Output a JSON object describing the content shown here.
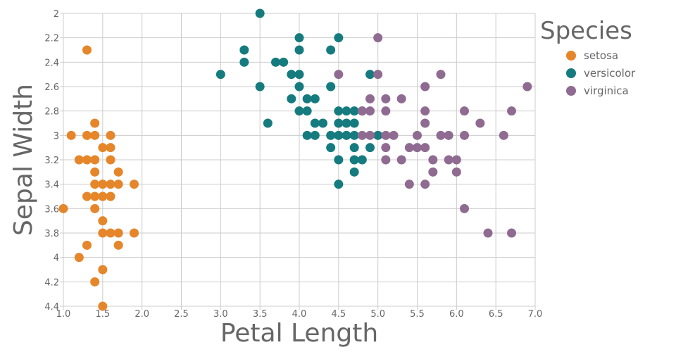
{
  "chart_data": {
    "type": "scatter",
    "xlabel": "Petal Length",
    "ylabel": "Sepal Width",
    "xlim": [
      1.0,
      7.0
    ],
    "ylim": [
      2.0,
      4.4
    ],
    "y_inverted": true,
    "x_ticks": [
      "1.0",
      "1.5",
      "2.0",
      "2.5",
      "3.0",
      "3.5",
      "4.0",
      "4.5",
      "5.0",
      "5.5",
      "6.0",
      "6.5",
      "7.0"
    ],
    "y_ticks": [
      "2",
      "2.2",
      "2.4",
      "2.6",
      "2.8",
      "3",
      "3.2",
      "3.4",
      "3.6",
      "3.8",
      "4",
      "4.2",
      "4.4"
    ],
    "grid": true,
    "legend": {
      "title": "Species",
      "position": "top-right"
    },
    "series": [
      {
        "name": "setosa",
        "color": "#e6862a",
        "points": [
          [
            1.3,
            2.3
          ],
          [
            1.1,
            3.0
          ],
          [
            1.3,
            3.0
          ],
          [
            1.4,
            3.0
          ],
          [
            1.6,
            3.0
          ],
          [
            1.4,
            2.9
          ],
          [
            1.5,
            3.1
          ],
          [
            1.6,
            3.1
          ],
          [
            1.2,
            3.2
          ],
          [
            1.3,
            3.2
          ],
          [
            1.4,
            3.2
          ],
          [
            1.6,
            3.2
          ],
          [
            1.4,
            3.3
          ],
          [
            1.7,
            3.3
          ],
          [
            1.4,
            3.4
          ],
          [
            1.5,
            3.4
          ],
          [
            1.6,
            3.4
          ],
          [
            1.7,
            3.4
          ],
          [
            1.9,
            3.4
          ],
          [
            1.3,
            3.5
          ],
          [
            1.4,
            3.5
          ],
          [
            1.5,
            3.5
          ],
          [
            1.6,
            3.5
          ],
          [
            1.0,
            3.6
          ],
          [
            1.4,
            3.6
          ],
          [
            1.5,
            3.7
          ],
          [
            1.5,
            3.8
          ],
          [
            1.6,
            3.8
          ],
          [
            1.7,
            3.8
          ],
          [
            1.9,
            3.8
          ],
          [
            1.3,
            3.9
          ],
          [
            1.7,
            3.9
          ],
          [
            1.2,
            4.0
          ],
          [
            1.5,
            4.1
          ],
          [
            1.4,
            4.2
          ],
          [
            1.5,
            4.4
          ]
        ]
      },
      {
        "name": "versicolor",
        "color": "#167b7e",
        "points": [
          [
            3.5,
            2.0
          ],
          [
            4.0,
            2.2
          ],
          [
            4.5,
            2.2
          ],
          [
            3.3,
            2.3
          ],
          [
            4.0,
            2.3
          ],
          [
            4.4,
            2.3
          ],
          [
            3.3,
            2.4
          ],
          [
            3.7,
            2.4
          ],
          [
            3.8,
            2.4
          ],
          [
            3.0,
            2.5
          ],
          [
            3.9,
            2.5
          ],
          [
            4.0,
            2.5
          ],
          [
            4.9,
            2.5
          ],
          [
            3.5,
            2.6
          ],
          [
            4.0,
            2.6
          ],
          [
            4.4,
            2.6
          ],
          [
            3.9,
            2.7
          ],
          [
            4.1,
            2.7
          ],
          [
            4.2,
            2.7
          ],
          [
            4.0,
            2.8
          ],
          [
            4.1,
            2.8
          ],
          [
            4.5,
            2.8
          ],
          [
            4.6,
            2.8
          ],
          [
            4.7,
            2.8
          ],
          [
            4.8,
            2.8
          ],
          [
            3.6,
            2.9
          ],
          [
            4.2,
            2.9
          ],
          [
            4.3,
            2.9
          ],
          [
            4.5,
            2.9
          ],
          [
            4.6,
            2.9
          ],
          [
            4.7,
            2.9
          ],
          [
            4.1,
            3.0
          ],
          [
            4.2,
            3.0
          ],
          [
            4.4,
            3.0
          ],
          [
            4.5,
            3.0
          ],
          [
            4.6,
            3.0
          ],
          [
            4.7,
            3.0
          ],
          [
            5.0,
            3.0
          ],
          [
            4.4,
            3.1
          ],
          [
            4.7,
            3.1
          ],
          [
            4.9,
            3.1
          ],
          [
            4.5,
            3.2
          ],
          [
            4.7,
            3.2
          ],
          [
            4.8,
            3.2
          ],
          [
            4.7,
            3.3
          ],
          [
            4.5,
            3.4
          ]
        ]
      },
      {
        "name": "virginica",
        "color": "#8f6b92",
        "points": [
          [
            5.0,
            2.2
          ],
          [
            4.5,
            2.5
          ],
          [
            5.0,
            2.5
          ],
          [
            5.8,
            2.5
          ],
          [
            5.6,
            2.6
          ],
          [
            6.9,
            2.6
          ],
          [
            4.9,
            2.7
          ],
          [
            5.1,
            2.7
          ],
          [
            5.3,
            2.7
          ],
          [
            4.8,
            2.8
          ],
          [
            4.9,
            2.8
          ],
          [
            5.1,
            2.8
          ],
          [
            5.6,
            2.8
          ],
          [
            6.1,
            2.8
          ],
          [
            6.7,
            2.8
          ],
          [
            5.6,
            2.9
          ],
          [
            6.3,
            2.9
          ],
          [
            4.8,
            3.0
          ],
          [
            4.9,
            3.0
          ],
          [
            5.1,
            3.0
          ],
          [
            5.2,
            3.0
          ],
          [
            5.5,
            3.0
          ],
          [
            5.8,
            3.0
          ],
          [
            5.9,
            3.0
          ],
          [
            6.1,
            3.0
          ],
          [
            6.6,
            3.0
          ],
          [
            5.1,
            3.1
          ],
          [
            5.4,
            3.1
          ],
          [
            5.5,
            3.1
          ],
          [
            5.6,
            3.1
          ],
          [
            5.1,
            3.2
          ],
          [
            5.3,
            3.2
          ],
          [
            5.7,
            3.2
          ],
          [
            5.9,
            3.2
          ],
          [
            6.0,
            3.2
          ],
          [
            5.7,
            3.3
          ],
          [
            6.0,
            3.3
          ],
          [
            5.4,
            3.4
          ],
          [
            5.6,
            3.4
          ],
          [
            6.1,
            3.6
          ],
          [
            6.4,
            3.8
          ],
          [
            6.7,
            3.8
          ]
        ]
      }
    ]
  }
}
